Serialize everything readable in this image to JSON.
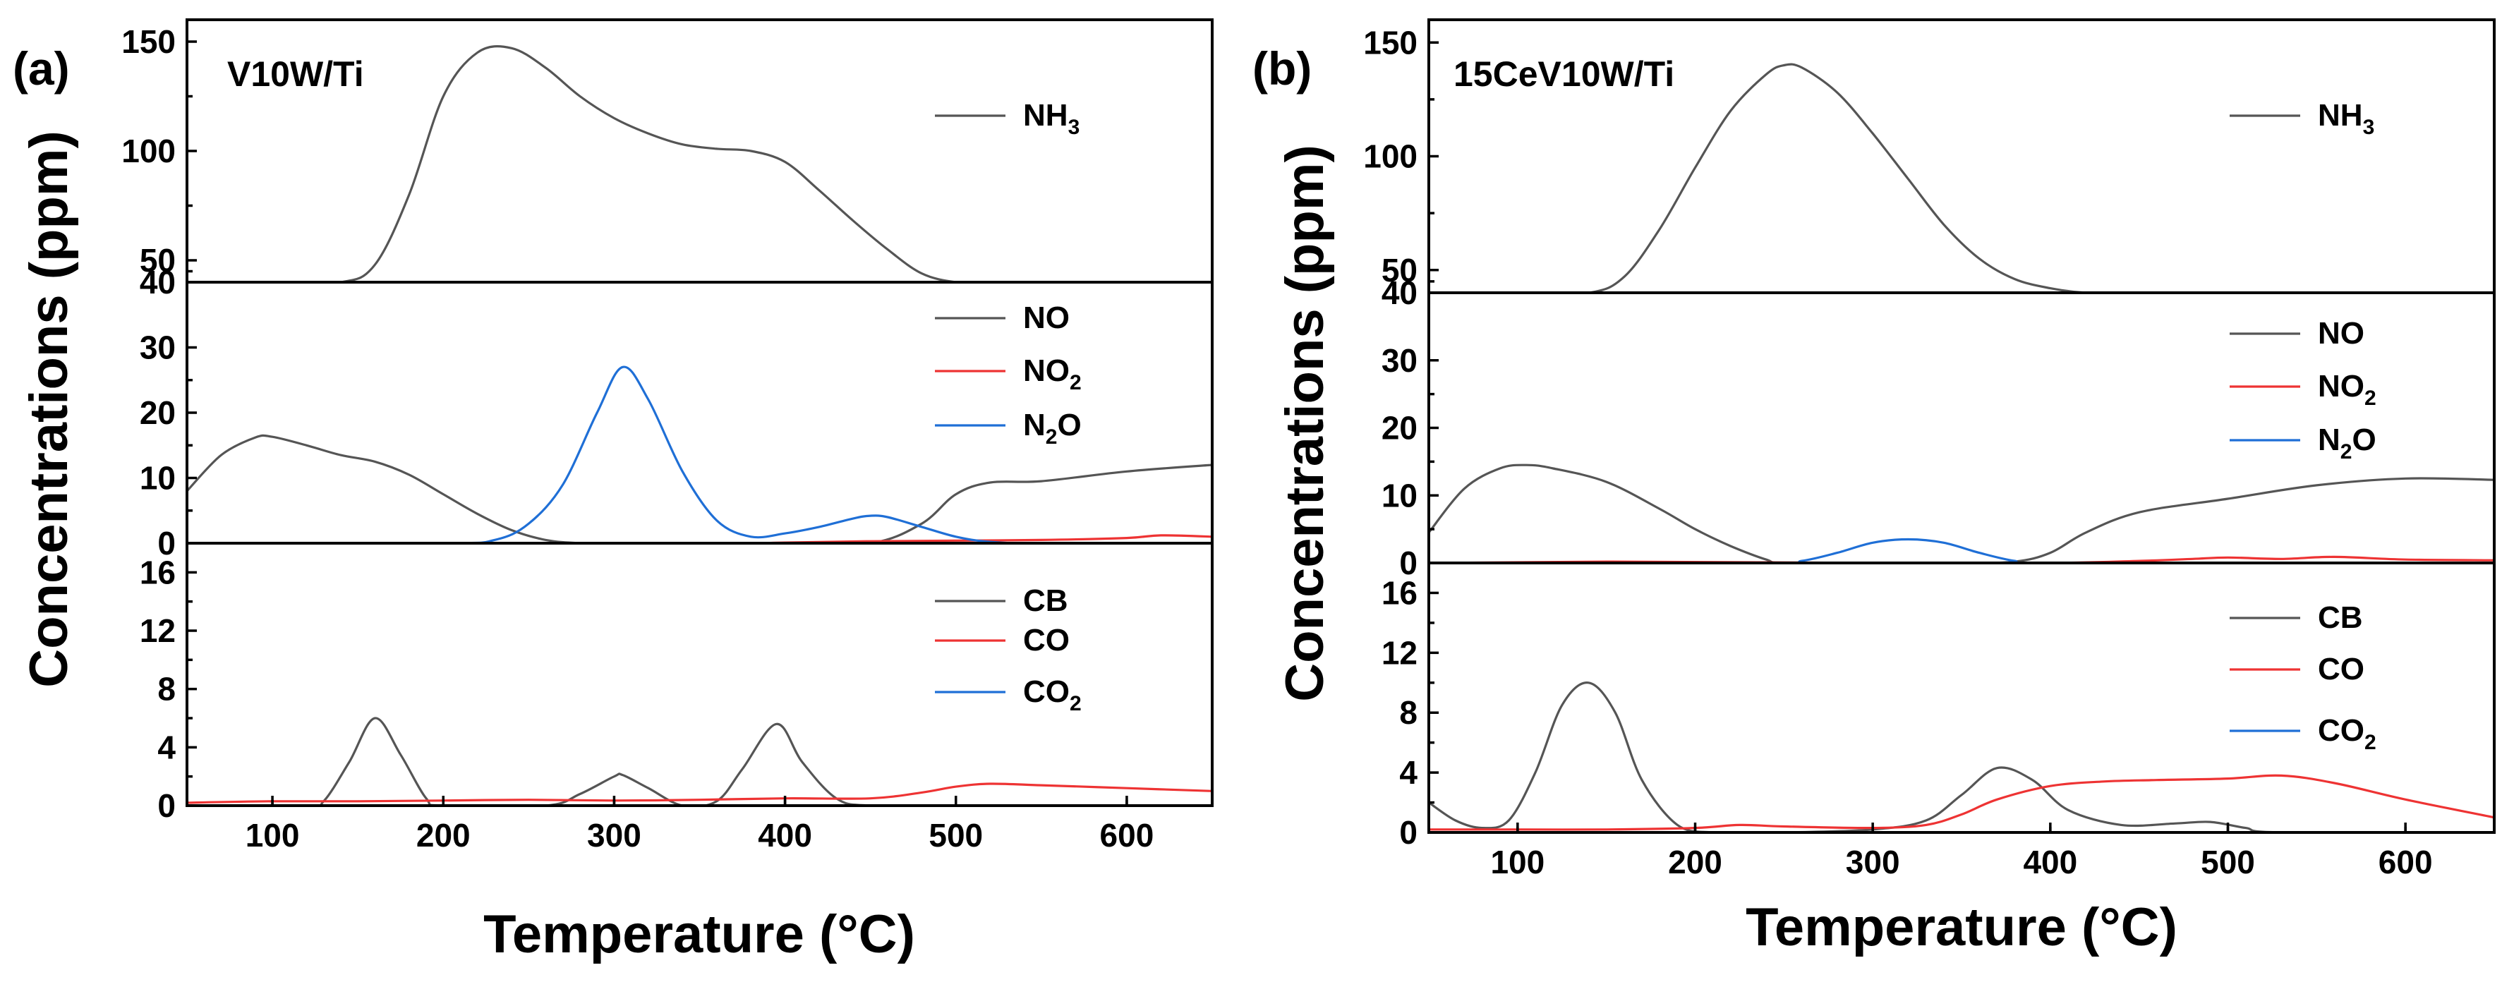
{
  "y_axis_title": "Concentrations (ppm)",
  "chart_data": [
    {
      "type": "line",
      "panel": "a",
      "panel_label": "(a)",
      "catalyst": "V10W/Ti",
      "xlabel": "Temperature (°C)",
      "xlim": [
        50,
        650
      ],
      "xticks": [
        "100",
        "200",
        "300",
        "400",
        "500",
        "600"
      ],
      "subplots": [
        {
          "name": "nh3",
          "ylim": [
            40,
            160
          ],
          "yticks": [
            40,
            50,
            100,
            150
          ],
          "series": [
            {
              "name": "NH3",
              "label_main": "NH",
              "label_sub": "3",
              "color": "#555555",
              "x": [
                50,
                100,
                140,
                160,
                180,
                200,
                220,
                240,
                260,
                280,
                300,
                320,
                340,
                360,
                380,
                400,
                420,
                440,
                460,
                480,
                500,
                520,
                550,
                600,
                650
              ],
              "y": [
                40,
                40,
                40,
                48,
                80,
                125,
                145,
                147,
                138,
                125,
                115,
                108,
                103,
                101,
                100,
                95,
                82,
                68,
                55,
                44,
                40,
                40,
                40,
                40,
                40
              ]
            }
          ]
        },
        {
          "name": "nox",
          "ylim": [
            0,
            40
          ],
          "yticks": [
            0,
            10,
            20,
            30
          ],
          "series": [
            {
              "name": "NO",
              "label_main": "NO",
              "label_sub": "",
              "color": "#555555",
              "x": [
                50,
                70,
                90,
                100,
                120,
                140,
                160,
                180,
                200,
                220,
                240,
                260,
                280,
                300,
                400,
                450,
                480,
                500,
                520,
                550,
                600,
                650
              ],
              "y": [
                8,
                13.5,
                16.2,
                16.3,
                15,
                13.5,
                12.5,
                10.5,
                7.5,
                4.5,
                2,
                0.5,
                0,
                0,
                0,
                0,
                3,
                7.5,
                9.3,
                9.5,
                11,
                12
              ]
            },
            {
              "name": "NO2",
              "label_main": "NO",
              "label_sub": "2",
              "color": "#ee3333",
              "x": [
                50,
                350,
                400,
                450,
                500,
                550,
                600,
                620,
                650
              ],
              "y": [
                0,
                0,
                0.1,
                0.3,
                0.4,
                0.5,
                0.8,
                1.2,
                1
              ]
            },
            {
              "name": "N2O",
              "label_main": "N",
              "label_sub": "2",
              "label_tail": "O",
              "color": "#1f6fd6",
              "x": [
                50,
                200,
                230,
                250,
                270,
                290,
                305,
                320,
                340,
                360,
                380,
                400,
                420,
                440,
                450,
                460,
                480,
                500,
                520,
                550,
                650
              ],
              "y": [
                0,
                0,
                0.5,
                3,
                9,
                20,
                27,
                22,
                11,
                3.5,
                1,
                1.5,
                2.5,
                3.8,
                4.2,
                4,
                2.5,
                1,
                0.2,
                0,
                0
              ]
            }
          ]
        },
        {
          "name": "carbon",
          "ylim": [
            0,
            18
          ],
          "yticks": [
            0,
            4,
            8,
            12,
            16
          ],
          "series": [
            {
              "name": "CB",
              "label_main": "CB",
              "label_sub": "",
              "color": "#555555",
              "x": [
                50,
                120,
                130,
                145,
                160,
                175,
                190,
                200,
                260,
                280,
                300,
                305,
                320,
                340,
                360,
                375,
                395,
                410,
                430,
                450,
                500,
                650
              ],
              "y": [
                0,
                0,
                0.3,
                3,
                6,
                3.5,
                0.5,
                0,
                0,
                0.8,
                2,
                2.1,
                1.2,
                0,
                0.3,
                2.5,
                5.6,
                3,
                0.5,
                0,
                0,
                0
              ]
            },
            {
              "name": "CO",
              "label_main": "CO",
              "label_sub": "",
              "color": "#ee3333",
              "x": [
                50,
                100,
                150,
                200,
                250,
                300,
                350,
                400,
                450,
                480,
                500,
                520,
                550,
                600,
                650
              ],
              "y": [
                0.2,
                0.3,
                0.3,
                0.35,
                0.4,
                0.35,
                0.4,
                0.5,
                0.5,
                0.9,
                1.3,
                1.5,
                1.4,
                1.2,
                1
              ]
            },
            {
              "name": "CO2",
              "label_main": "CO",
              "label_sub": "2",
              "color": "#1f6fd6",
              "x": [
                50,
                650
              ],
              "y": [
                0,
                0
              ]
            }
          ]
        }
      ]
    },
    {
      "type": "line",
      "panel": "b",
      "panel_label": "(b)",
      "catalyst": "15CeV10W/Ti",
      "xlabel": "Temperature (°C)",
      "xlim": [
        50,
        650
      ],
      "xticks": [
        "100",
        "200",
        "300",
        "400",
        "500",
        "600"
      ],
      "subplots": [
        {
          "name": "nh3",
          "ylim": [
            40,
            160
          ],
          "yticks": [
            40,
            50,
            100,
            150
          ],
          "series": [
            {
              "name": "NH3",
              "label_main": "NH",
              "label_sub": "3",
              "color": "#555555",
              "x": [
                50,
                100,
                140,
                160,
                180,
                200,
                220,
                240,
                250,
                260,
                280,
                300,
                320,
                340,
                360,
                380,
                400,
                420,
                440,
                500,
                650
              ],
              "y": [
                40,
                40,
                40,
                47,
                68,
                95,
                120,
                136,
                140,
                139,
                128,
                110,
                90,
                70,
                55,
                46,
                42,
                40,
                40,
                40,
                40
              ]
            }
          ]
        },
        {
          "name": "nox",
          "ylim": [
            0,
            40
          ],
          "yticks": [
            0,
            10,
            20,
            30
          ],
          "series": [
            {
              "name": "NO",
              "label_main": "NO",
              "label_sub": "",
              "color": "#555555",
              "x": [
                50,
                70,
                90,
                105,
                120,
                150,
                180,
                200,
                220,
                240,
                250,
                300,
                350,
                380,
                400,
                420,
                450,
                500,
                550,
                600,
                650
              ],
              "y": [
                4.5,
                11,
                14,
                14.5,
                14,
                12,
                8,
                5,
                2.5,
                0.5,
                0,
                0,
                0,
                0.2,
                1.5,
                4.5,
                7.5,
                9.5,
                11.5,
                12.5,
                12.3
              ]
            },
            {
              "name": "NO2",
              "label_main": "NO",
              "label_sub": "2",
              "color": "#ee3333",
              "x": [
                50,
                150,
                300,
                400,
                450,
                480,
                500,
                530,
                560,
                600,
                650
              ],
              "y": [
                0,
                0.2,
                0,
                0,
                0.3,
                0.6,
                0.8,
                0.6,
                0.9,
                0.5,
                0.4
              ]
            },
            {
              "name": "N2O",
              "label_main": "N",
              "label_sub": "2",
              "label_tail": "O",
              "color": "#1f6fd6",
              "x": [
                50,
                240,
                260,
                280,
                300,
                320,
                340,
                360,
                380,
                400,
                650
              ],
              "y": [
                0,
                0,
                0.3,
                1.5,
                3,
                3.5,
                3,
                1.5,
                0.3,
                0,
                0
              ]
            }
          ]
        },
        {
          "name": "carbon",
          "ylim": [
            0,
            18
          ],
          "yticks": [
            0,
            4,
            8,
            12,
            16
          ],
          "series": [
            {
              "name": "CB",
              "label_main": "CB",
              "label_sub": "",
              "color": "#555555",
              "x": [
                50,
                65,
                80,
                95,
                110,
                125,
                140,
                155,
                170,
                190,
                210,
                230,
                250,
                300,
                330,
                350,
                370,
                390,
                410,
                440,
                470,
                490,
                510,
                530,
                650
              ],
              "y": [
                2,
                0.8,
                0.3,
                0.8,
                4,
                8.5,
                10,
                8,
                3.5,
                0.5,
                0,
                0,
                0,
                0.2,
                0.8,
                2.5,
                4.3,
                3.5,
                1.5,
                0.5,
                0.6,
                0.7,
                0.3,
                0,
                0
              ]
            },
            {
              "name": "CO",
              "label_main": "CO",
              "label_sub": "",
              "color": "#ee3333",
              "x": [
                50,
                100,
                150,
                200,
                225,
                250,
                300,
                330,
                350,
                370,
                400,
                430,
                460,
                500,
                530,
                560,
                600,
                650
              ],
              "y": [
                0.2,
                0.2,
                0.2,
                0.3,
                0.5,
                0.4,
                0.3,
                0.5,
                1.2,
                2.2,
                3.1,
                3.4,
                3.5,
                3.6,
                3.8,
                3.3,
                2.2,
                1
              ]
            },
            {
              "name": "CO2",
              "label_main": "CO",
              "label_sub": "2",
              "color": "#1f6fd6",
              "x": [
                50,
                650
              ],
              "y": [
                0,
                0
              ]
            }
          ]
        }
      ]
    }
  ]
}
